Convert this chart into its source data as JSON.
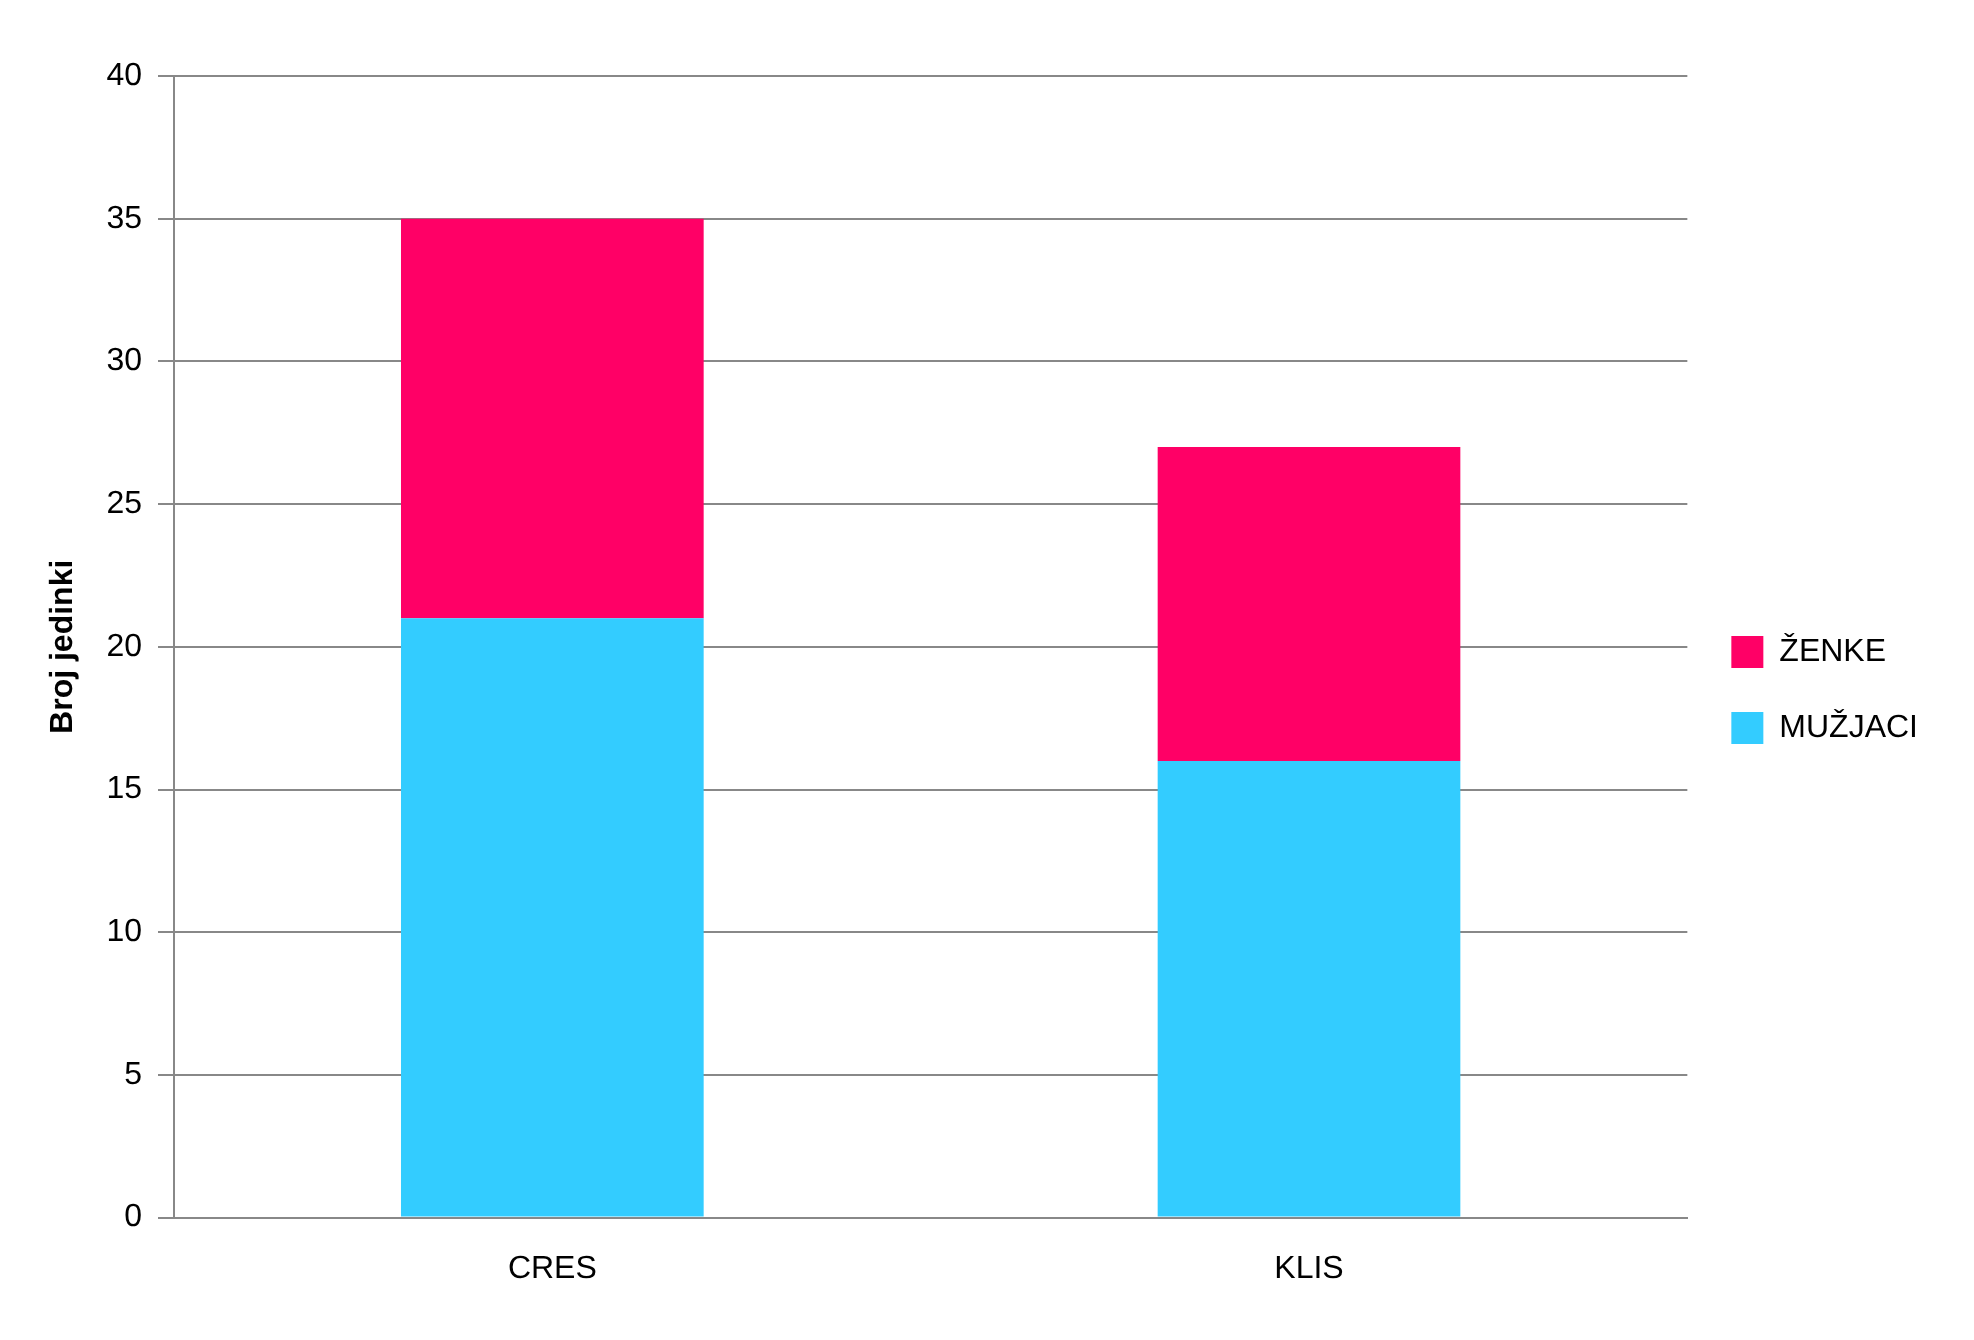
{
  "chart_data": {
    "type": "bar",
    "ylabel": "Broj jedinki",
    "categories": [
      "CRES",
      "KLIS"
    ],
    "stacked": true,
    "series": [
      {
        "name": "MUŽJACI",
        "color": "#33ccff",
        "values": [
          21,
          16
        ]
      },
      {
        "name": "ŽENKE",
        "color": "#ff0066",
        "values": [
          14,
          11
        ]
      }
    ],
    "ylim": [
      0,
      40
    ],
    "yticks": [
      0,
      5,
      10,
      15,
      20,
      25,
      30,
      35,
      40
    ],
    "grid": "y",
    "legend": "right"
  }
}
